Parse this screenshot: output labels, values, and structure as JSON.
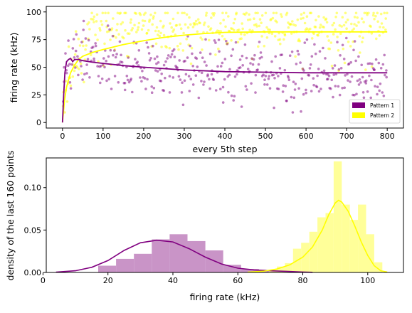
{
  "colors": {
    "pattern1": "#800080",
    "pattern2": "#ffff00",
    "hist1": "#c994c7",
    "hist2": "#ffff99"
  },
  "chart_data": [
    {
      "type": "scatter",
      "xlabel": "every 5th step",
      "ylabel": "firing rate (kHz)",
      "xlim": [
        -40,
        840
      ],
      "ylim": [
        -5,
        105
      ],
      "xticks": [
        0,
        100,
        200,
        300,
        400,
        500,
        600,
        700,
        800
      ],
      "yticks": [
        0,
        25,
        50,
        75,
        100
      ],
      "legend": {
        "position": "lower-right",
        "entries": [
          "Pattern 1",
          "Pattern 2"
        ]
      },
      "series": [
        {
          "name": "Pattern 1",
          "color": "#800080",
          "scatter_range": {
            "x": [
              0,
              800
            ],
            "mean": 46,
            "spread": 14
          },
          "fit_curve": {
            "x": [
              0,
              3,
              6,
              10,
              15,
              20,
              25,
              30,
              40,
              50,
              75,
              100,
              150,
              200,
              300,
              400,
              500,
              600,
              700,
              800
            ],
            "y": [
              0,
              25,
              45,
              55,
              57,
              58,
              55,
              57,
              57,
              56,
              54.5,
              53.5,
              51.5,
              50,
              47.5,
              46,
              45.5,
              45,
              45,
              45
            ]
          }
        },
        {
          "name": "Pattern 2",
          "color": "#ffff00",
          "scatter_range": {
            "x": [
              0,
              800
            ],
            "mean": 88,
            "spread": 9
          },
          "fit_curve": {
            "x": [
              0,
              5,
              10,
              20,
              30,
              40,
              50,
              75,
              100,
              150,
              200,
              250,
              300,
              350,
              400,
              500,
              600,
              700,
              800
            ],
            "y": [
              0,
              20,
              32,
              45,
              52,
              57,
              60,
              63.5,
              66,
              70.5,
              74,
              77,
              79,
              80.5,
              81.5,
              82,
              82,
              82,
              82
            ]
          }
        }
      ]
    },
    {
      "type": "histogram",
      "xlabel": "firing rate (kHz)",
      "ylabel": "density of the last 160 points",
      "xlim": [
        1,
        111
      ],
      "ylim": [
        0,
        0.135
      ],
      "xticks": [
        0,
        20,
        40,
        60,
        80,
        100
      ],
      "yticks": [
        0.0,
        0.05,
        0.1
      ],
      "ytick_labels": [
        "0.00",
        "0.05",
        "0.10"
      ],
      "series": [
        {
          "name": "Pattern 1",
          "bin_start": 17,
          "bin_width": 5.5,
          "values": [
            0.008,
            0.016,
            0.022,
            0.039,
            0.045,
            0.037,
            0.026,
            0.009,
            0.004,
            0.003,
            0.001
          ],
          "kde": {
            "x": [
              4,
              10,
              15,
              20,
              25,
              30,
              35,
              40,
              45,
              50,
              55,
              60,
              65,
              70,
              75,
              80,
              83
            ],
            "y": [
              0.0003,
              0.002,
              0.006,
              0.014,
              0.026,
              0.035,
              0.038,
              0.036,
              0.028,
              0.018,
              0.01,
              0.005,
              0.003,
              0.002,
              0.0013,
              0.0005,
              0.0002
            ]
          }
        },
        {
          "name": "Pattern 2",
          "bin_start": 69.5,
          "bin_width": 2.5,
          "values": [
            0.003,
            0.007,
            0.011,
            0.028,
            0.035,
            0.048,
            0.065,
            0.07,
            0.131,
            0.08,
            0.062,
            0.08,
            0.045,
            0.012
          ],
          "kde": {
            "x": [
              63,
              68,
              72,
              76,
              80,
              83,
              86,
              88,
              90,
              91,
              92,
              94,
              96,
              98,
              100,
              102,
              104,
              106
            ],
            "y": [
              0.0003,
              0.0015,
              0.004,
              0.009,
              0.018,
              0.03,
              0.05,
              0.068,
              0.082,
              0.085,
              0.083,
              0.072,
              0.055,
              0.036,
              0.02,
              0.008,
              0.002,
              0.0005
            ]
          }
        }
      ]
    }
  ]
}
